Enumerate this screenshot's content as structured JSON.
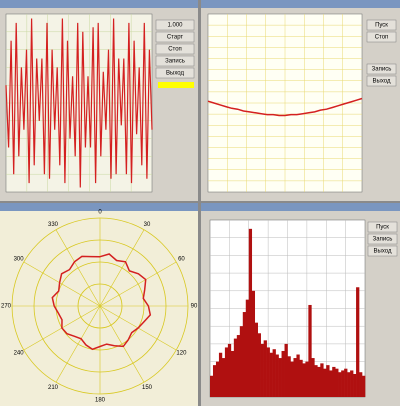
{
  "chart_data": [
    {
      "type": "line",
      "color": "#d42020",
      "ylim": [
        -1,
        1
      ],
      "values": [
        0.2,
        -0.5,
        0.7,
        -0.8,
        0.9,
        -0.6,
        0.4,
        -0.3,
        0.6,
        -0.9,
        0.95,
        -0.7,
        0.5,
        -0.2,
        0.5,
        -0.8,
        0.9,
        -0.85,
        0.6,
        -0.3,
        0.4,
        -0.7,
        0.95,
        -0.9,
        0.7,
        -0.4,
        0.3,
        -0.6,
        0.9,
        -0.95,
        0.8,
        -0.5,
        0.3,
        -0.5,
        0.85,
        -0.9,
        0.9,
        -0.6,
        0.35,
        -0.3,
        0.6,
        -0.85,
        0.95,
        -0.8,
        0.5,
        -0.25,
        0.5,
        -0.8,
        0.9,
        -0.9,
        0.7,
        -0.35,
        0.4,
        -0.7,
        0.9,
        -0.85,
        0.6,
        -0.3
      ]
    },
    {
      "type": "line",
      "color": "#d42020",
      "ylim": [
        -1,
        1
      ],
      "values": [
        0.02,
        0.0,
        -0.02,
        -0.04,
        -0.06,
        -0.07,
        -0.09,
        -0.1,
        -0.11,
        -0.12,
        -0.13,
        -0.13,
        -0.14,
        -0.14,
        -0.13,
        -0.13,
        -0.12,
        -0.11,
        -0.1,
        -0.08,
        -0.07,
        -0.05,
        -0.03,
        -0.01,
        0.01,
        0.03,
        0.05
      ]
    },
    {
      "type": "polar",
      "color": "#d42020",
      "rlim": [
        0,
        1
      ],
      "angle_ticks": [
        0,
        30,
        60,
        90,
        120,
        150,
        180,
        210,
        240,
        270,
        300,
        330
      ],
      "values": [
        0.56,
        0.6,
        0.55,
        0.58,
        0.52,
        0.57,
        0.6,
        0.54,
        0.5,
        0.55,
        0.58,
        0.53,
        0.5,
        0.47,
        0.5,
        0.53,
        0.48,
        0.44,
        0.46,
        0.5,
        0.47,
        0.43,
        0.45,
        0.49,
        0.5,
        0.46,
        0.48,
        0.52,
        0.55,
        0.5,
        0.53,
        0.57,
        0.54,
        0.58,
        0.6,
        0.57
      ]
    },
    {
      "type": "bar",
      "color": "#b01010",
      "ylim": [
        0,
        1
      ],
      "values": [
        0.12,
        0.18,
        0.2,
        0.25,
        0.22,
        0.28,
        0.3,
        0.26,
        0.33,
        0.35,
        0.4,
        0.48,
        0.55,
        0.95,
        0.6,
        0.42,
        0.36,
        0.3,
        0.32,
        0.28,
        0.25,
        0.27,
        0.24,
        0.22,
        0.26,
        0.3,
        0.23,
        0.2,
        0.22,
        0.24,
        0.21,
        0.19,
        0.2,
        0.52,
        0.22,
        0.18,
        0.17,
        0.19,
        0.16,
        0.18,
        0.15,
        0.17,
        0.16,
        0.14,
        0.15,
        0.16,
        0.14,
        0.15,
        0.13,
        0.62,
        0.14,
        0.12
      ]
    }
  ],
  "controls": {
    "tl": [
      "1.000",
      "Старт",
      "Стоп",
      "Запись",
      "Выход"
    ],
    "tr": [
      "Пуск",
      "Стоп",
      "Запись",
      "Выход"
    ],
    "br": [
      "Пуск",
      "Запись",
      "Выход"
    ]
  }
}
